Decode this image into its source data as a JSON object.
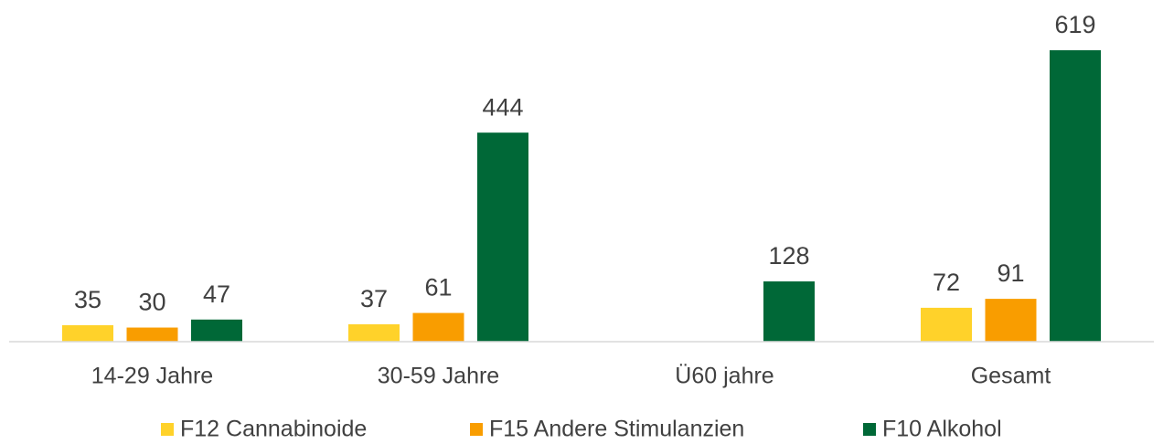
{
  "chart_data": {
    "type": "bar",
    "categories": [
      "14-29 Jahre",
      "30-59 Jahre",
      "Ü60 jahre",
      "Gesamt"
    ],
    "series": [
      {
        "name": "F12 Cannabinoide",
        "color": "#ffd22a",
        "values": [
          35,
          37,
          null,
          72
        ]
      },
      {
        "name": "F15 Andere Stimulanzien",
        "color": "#f99d00",
        "values": [
          30,
          61,
          null,
          91
        ]
      },
      {
        "name": "F10 Alkohol",
        "color": "#006837",
        "values": [
          47,
          444,
          128,
          619
        ]
      }
    ],
    "legend": "bottom"
  }
}
